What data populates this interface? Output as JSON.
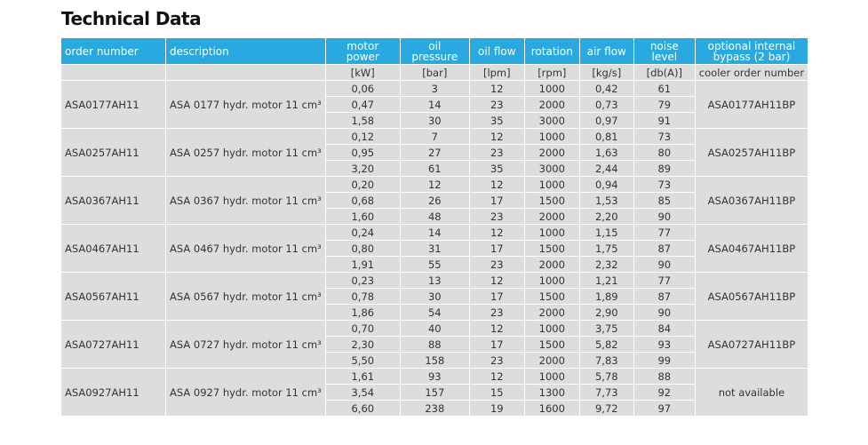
{
  "title": "Technical Data",
  "table": {
    "header": [
      "order number",
      "description",
      "motor power",
      "oil pressure",
      "oil flow",
      "rotation",
      "air flow",
      "noise level",
      "optional internal bypass (2 bar)"
    ],
    "units": [
      "[kW]",
      "[bar]",
      "[lpm]",
      "[rpm]",
      "[kg/s]",
      "[db(A)]",
      "cooler order number"
    ],
    "groups": [
      {
        "order_number": "ASA0177AH11",
        "description": "ASA 0177 hydr. motor 11 cm³",
        "bypass": "ASA0177AH11BP",
        "rows": [
          [
            "0,06",
            "3",
            "12",
            "1000",
            "0,42",
            "61"
          ],
          [
            "0,47",
            "14",
            "23",
            "2000",
            "0,73",
            "79"
          ],
          [
            "1,58",
            "30",
            "35",
            "3000",
            "0,97",
            "91"
          ]
        ]
      },
      {
        "order_number": "ASA0257AH11",
        "description": "ASA 0257 hydr. motor 11 cm³",
        "bypass": "ASA0257AH11BP",
        "rows": [
          [
            "0,12",
            "7",
            "12",
            "1000",
            "0,81",
            "73"
          ],
          [
            "0,95",
            "27",
            "23",
            "2000",
            "1,63",
            "80"
          ],
          [
            "3,20",
            "61",
            "35",
            "3000",
            "2,44",
            "89"
          ]
        ]
      },
      {
        "order_number": "ASA0367AH11",
        "description": "ASA 0367 hydr. motor 11 cm³",
        "bypass": "ASA0367AH11BP",
        "rows": [
          [
            "0,20",
            "12",
            "12",
            "1000",
            "0,94",
            "73"
          ],
          [
            "0,68",
            "26",
            "17",
            "1500",
            "1,53",
            "85"
          ],
          [
            "1,60",
            "48",
            "23",
            "2000",
            "2,20",
            "90"
          ]
        ]
      },
      {
        "order_number": "ASA0467AH11",
        "description": "ASA 0467 hydr. motor 11 cm³",
        "bypass": "ASA0467AH11BP",
        "rows": [
          [
            "0,24",
            "14",
            "12",
            "1000",
            "1,15",
            "77"
          ],
          [
            "0,80",
            "31",
            "17",
            "1500",
            "1,75",
            "87"
          ],
          [
            "1,91",
            "55",
            "23",
            "2000",
            "2,32",
            "90"
          ]
        ]
      },
      {
        "order_number": "ASA0567AH11",
        "description": "ASA 0567 hydr. motor 11 cm³",
        "bypass": "ASA0567AH11BP",
        "rows": [
          [
            "0,23",
            "13",
            "12",
            "1000",
            "1,21",
            "77"
          ],
          [
            "0,78",
            "30",
            "17",
            "1500",
            "1,89",
            "87"
          ],
          [
            "1,86",
            "54",
            "23",
            "2000",
            "2,90",
            "90"
          ]
        ]
      },
      {
        "order_number": "ASA0727AH11",
        "description": "ASA 0727 hydr. motor 11 cm³",
        "bypass": "ASA0727AH11BP",
        "rows": [
          [
            "0,70",
            "40",
            "12",
            "1000",
            "3,75",
            "84"
          ],
          [
            "2,30",
            "88",
            "17",
            "1500",
            "5,82",
            "93"
          ],
          [
            "5,50",
            "158",
            "23",
            "2000",
            "7,83",
            "99"
          ]
        ]
      },
      {
        "order_number": "ASA0927AH11",
        "description": "ASA 0927 hydr. motor 11 cm³",
        "bypass": "not available",
        "rows": [
          [
            "1,61",
            "93",
            "12",
            "1000",
            "5,78",
            "88"
          ],
          [
            "3,54",
            "157",
            "15",
            "1300",
            "7,73",
            "92"
          ],
          [
            "6,60",
            "238",
            "19",
            "1600",
            "9,72",
            "97"
          ]
        ]
      }
    ]
  }
}
